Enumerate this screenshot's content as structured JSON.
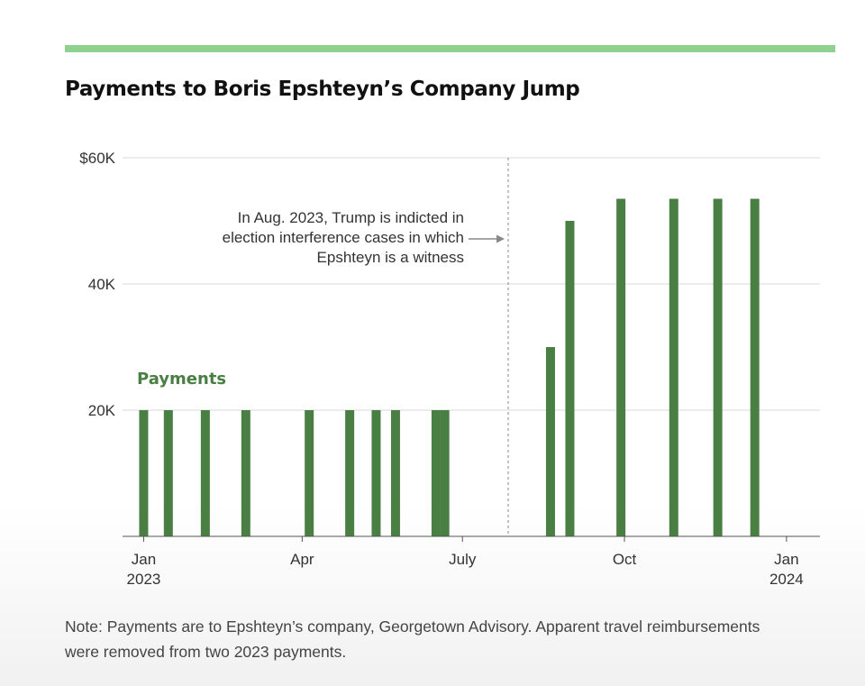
{
  "title": "Payments to Boris Epshteyn’s Company Jump",
  "note": "Note: Payments are to Epshteyn’s company, Georgetown Advisory. Apparent travel reimbursements were removed from two 2023 payments.",
  "colors": {
    "accent_bar": "#8fd18f",
    "bars": "#4a7f44",
    "grid": "#d9d9d9",
    "axis": "#555555",
    "marker": "#888888"
  },
  "chart_data": {
    "type": "bar",
    "series": [
      {
        "name": "Payments",
        "points": [
          {
            "date": "2023-01-01",
            "value": 20000
          },
          {
            "date": "2023-01-15",
            "value": 20000
          },
          {
            "date": "2023-02-05",
            "value": 20000
          },
          {
            "date": "2023-02-28",
            "value": 20000
          },
          {
            "date": "2023-04-05",
            "value": 20000
          },
          {
            "date": "2023-04-28",
            "value": 20000
          },
          {
            "date": "2023-05-13",
            "value": 20000
          },
          {
            "date": "2023-05-24",
            "value": 20000
          },
          {
            "date": "2023-06-16",
            "value": 20000
          },
          {
            "date": "2023-06-21",
            "value": 20000
          },
          {
            "date": "2023-08-20",
            "value": 30000
          },
          {
            "date": "2023-08-31",
            "value": 50000
          },
          {
            "date": "2023-09-29",
            "value": 53500
          },
          {
            "date": "2023-10-29",
            "value": 53500
          },
          {
            "date": "2023-11-23",
            "value": 53500
          },
          {
            "date": "2023-12-14",
            "value": 53500
          }
        ]
      }
    ],
    "x_ticks": [
      {
        "date": "2023-01-01",
        "label": "Jan",
        "sublabel": "2023"
      },
      {
        "date": "2023-04-01",
        "label": "Apr",
        "sublabel": ""
      },
      {
        "date": "2023-07-01",
        "label": "July",
        "sublabel": ""
      },
      {
        "date": "2023-10-01",
        "label": "Oct",
        "sublabel": ""
      },
      {
        "date": "2024-01-01",
        "label": "Jan",
        "sublabel": "2024"
      }
    ],
    "y_ticks": [
      {
        "value": 20000,
        "label": "20K"
      },
      {
        "value": 40000,
        "label": "40K"
      },
      {
        "value": 60000,
        "label": "$60K"
      }
    ],
    "xlim": [
      "2022-12-20",
      "2024-01-20"
    ],
    "ylim": [
      0,
      60000
    ],
    "grid": true,
    "annotation": {
      "date": "2023-07-27",
      "lines": [
        "In Aug. 2023, Trump is indicted in",
        "election interference cases in which",
        "Epshteyn is a witness"
      ]
    },
    "series_label": "Payments"
  }
}
